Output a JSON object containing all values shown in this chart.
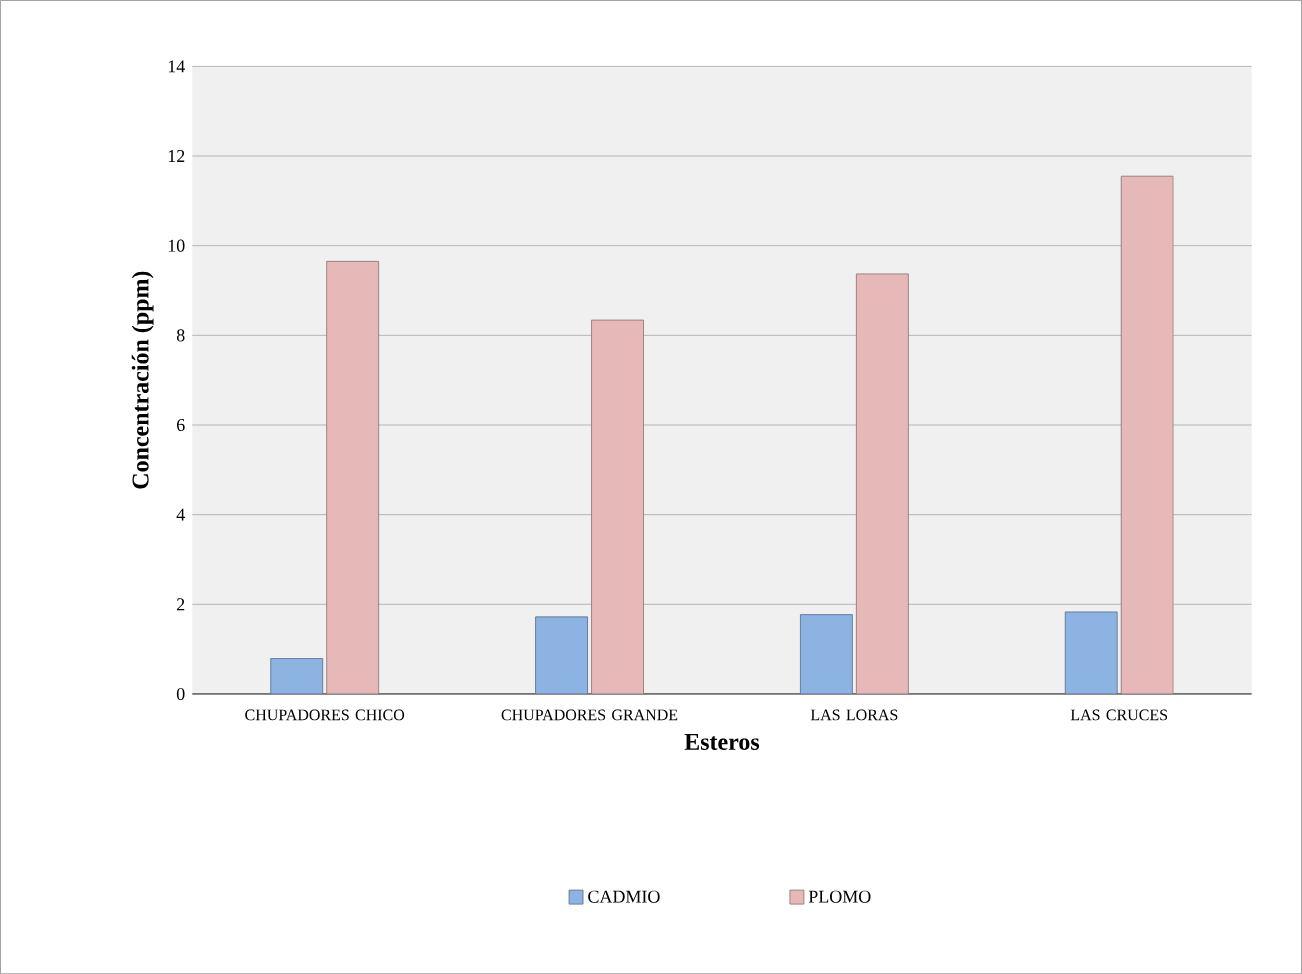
{
  "chart_data": {
    "type": "bar",
    "xlabel": "Esteros",
    "ylabel": "Concentración (ppm)",
    "categories": [
      "CHUPADORES CHICO",
      "CHUPADORES GRANDE",
      "LAS LORAS",
      "LAS CRUCES"
    ],
    "series": [
      {
        "name": "CADMIO",
        "color": "#8db3e2",
        "values": [
          0.79,
          1.72,
          1.77,
          1.83
        ]
      },
      {
        "name": "PLOMO",
        "color": "#e6b9b8",
        "values": [
          9.65,
          8.34,
          9.37,
          11.55
        ]
      }
    ],
    "ylim": [
      0,
      14
    ],
    "yticks": [
      0,
      2,
      4,
      6,
      8,
      10,
      12,
      14
    ],
    "grid": "y",
    "legend": "bottom"
  }
}
